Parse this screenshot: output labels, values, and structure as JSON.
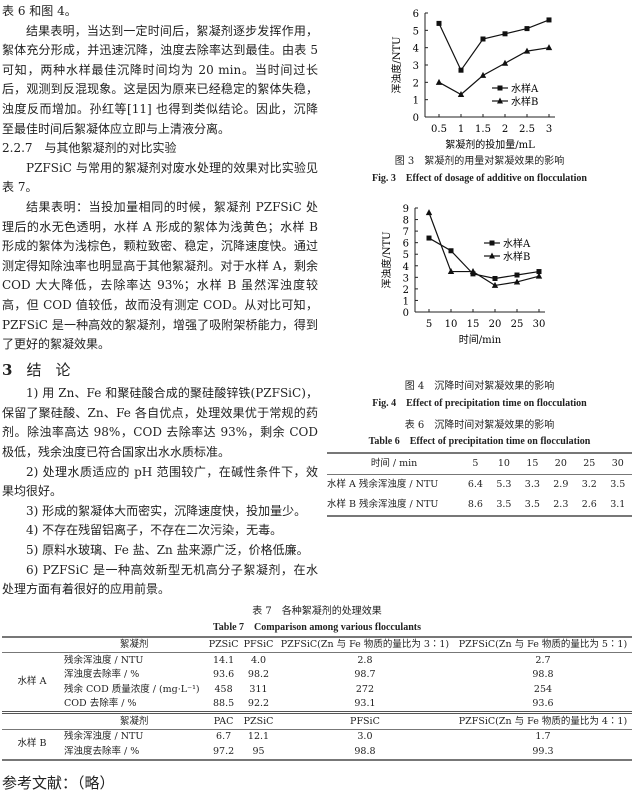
{
  "left_column": {
    "p0": "表 6 和图 4。",
    "p1": "结果表明，当达到一定时间后，絮凝剂逐步发挥作用，絮体充分形成，并迅速沉降，浊度去除率达到最佳。由表 5 可知，两种水样最佳沉降时间均为 20 min。当时间过长后，观测到反混现象。这是因为原来已经稳定的絮体失稳，浊度反而增加。孙红等[11] 也得到类似结论。因此，沉降至最佳时间后絮凝体应立即与上清液分离。",
    "h227": "2.2.7　与其他絮凝剂的对比实验",
    "p2": "PZFSiC 与常用的絮凝剂对废水处理的效果对比实验见表 7。",
    "p3": "结果表明：当投加量相同的时候，絮凝剂 PZFSiC 处理后的水无色透明，水样 A 形成的絮体为浅黄色；水样 B 形成的絮体为浅棕色，颗粒致密、稳定，沉降速度快。通过测定得知除浊率也明显高于其他絮凝剂。对于水样 A，剩余 COD 大大降低，去除率达 93%；水样 B 虽然浑浊度较高，但 COD 值较低，故而没有测定 COD。从对比可知，PZFSiC 是一种高效的絮凝剂，增强了吸附架桥能力，得到了更好的絮凝效果。",
    "sec3_num": "3",
    "sec3_title": "结论",
    "c1": "1) 用 Zn、Fe 和聚硅酸合成的聚硅酸锌铁(PZFSiC)，保留了聚硅酸、Zn、Fe 各自优点，处理效果优于常规的药剂。除浊率高达 98%，COD 去除率达 93%，剩余 COD 极低，残余浊度已符合国家出水水质标准。",
    "c2": "2) 处理水质适应的 pH 范围较广，在碱性条件下，效果均很好。",
    "c3": "3) 形成的絮凝体大而密实，沉降速度快，投加量少。",
    "c4": "4) 不存在残留铝离子，不存在二次污染，无毒。",
    "c5": "5) 原料水玻璃、Fe 盐、Zn 盐来源广泛，价格低廉。",
    "c6": "6) PZFSiC 是一种高效新型无机高分子絮凝剂，在水处理方面有着很好的应用前景。"
  },
  "chart_data": [
    {
      "type": "line",
      "title_cn": "图 3　絮凝剂的用量对絮凝效果的影响",
      "title_en": "Fig. 3　Effect of dosage of additive on flocculation",
      "xlabel": "絮凝剂的投加量/mL",
      "ylabel": "浑浊度/NTU",
      "x": [
        0.5,
        1,
        1.5,
        2,
        2.5,
        3
      ],
      "x_ticks": [
        "0.5",
        "1",
        "1.5",
        "2",
        "2.5",
        "3"
      ],
      "y_ticks": [
        "0",
        "1",
        "2",
        "3",
        "4",
        "5",
        "6"
      ],
      "ylim": [
        0,
        6
      ],
      "legend": "right",
      "series": [
        {
          "name": "水样A",
          "marker": "square",
          "values": [
            5.4,
            2.7,
            4.5,
            4.8,
            5.1,
            5.6
          ]
        },
        {
          "name": "水样B",
          "marker": "triangle",
          "values": [
            2.0,
            1.3,
            2.4,
            3.1,
            3.8,
            4.0
          ]
        }
      ]
    },
    {
      "type": "line",
      "title_cn": "图 4　沉降时间对絮凝效果的影响",
      "title_en": "Fig. 4　Effect of precipitation time on flocculation",
      "xlabel": "时间/min",
      "ylabel": "浑浊度/NTU",
      "x": [
        5,
        10,
        15,
        20,
        25,
        30
      ],
      "x_ticks": [
        "5",
        "10",
        "15",
        "20",
        "25",
        "30"
      ],
      "y_ticks": [
        "0",
        "1",
        "2",
        "3",
        "4",
        "5",
        "6",
        "7",
        "8",
        "9"
      ],
      "ylim": [
        0,
        9
      ],
      "legend": "right",
      "series": [
        {
          "name": "水样A",
          "marker": "square",
          "values": [
            6.4,
            5.3,
            3.3,
            2.9,
            3.2,
            3.5
          ]
        },
        {
          "name": "水样B",
          "marker": "triangle",
          "values": [
            8.6,
            3.5,
            3.5,
            2.3,
            2.6,
            3.1
          ]
        }
      ]
    }
  ],
  "table6": {
    "title_cn": "表 6　沉降时间对絮凝效果的影响",
    "title_en": "Table 6　Effect of precipitation time on flocculation",
    "header": [
      "时间 / min",
      "5",
      "10",
      "15",
      "20",
      "25",
      "30"
    ],
    "rows": [
      [
        "水样 A  残余浑浊度 / NTU",
        "6.4",
        "5.3",
        "3.3",
        "2.9",
        "3.2",
        "3.5"
      ],
      [
        "水样 B  残余浑浊度 / NTU",
        "8.6",
        "3.5",
        "3.5",
        "2.3",
        "2.6",
        "3.1"
      ]
    ]
  },
  "table7": {
    "title_cn": "表 7　各种絮凝剂的处理效果",
    "title_en": "Table 7　Comparison among various flocculants",
    "a_label": "水样 A",
    "a_header": [
      "絮凝剂",
      "PZSiC",
      "PFSiC",
      "PZFSiC(Zn 与 Fe 物质的量比为 3∶1)",
      "PZFSiC(Zn 与 Fe 物质的量比为 5∶1)"
    ],
    "a_rows": [
      [
        "残余浑浊度 / NTU",
        "14.1",
        "4.0",
        "2.8",
        "2.7"
      ],
      [
        "浑浊度去除率 / %",
        "93.6",
        "98.2",
        "98.7",
        "98.8"
      ],
      [
        "残余 COD 质量浓度 / (mg·L⁻¹)",
        "458",
        "311",
        "272",
        "254"
      ],
      [
        "COD 去除率 / %",
        "88.5",
        "92.2",
        "93.1",
        "93.6"
      ]
    ],
    "b_label": "水样 B",
    "b_header": [
      "絮凝剂",
      "PAC",
      "PZSiC",
      "PFSiC",
      "PZFSiC(Zn 与 Fe 物质的量比为 4∶1)"
    ],
    "b_rows": [
      [
        "残余浑浊度 / NTU",
        "6.7",
        "12.1",
        "3.0",
        "1.7"
      ],
      [
        "浑浊度去除率 / %",
        "97.2",
        "95",
        "98.8",
        "99.3"
      ]
    ]
  },
  "references": "参考文献：（略）"
}
